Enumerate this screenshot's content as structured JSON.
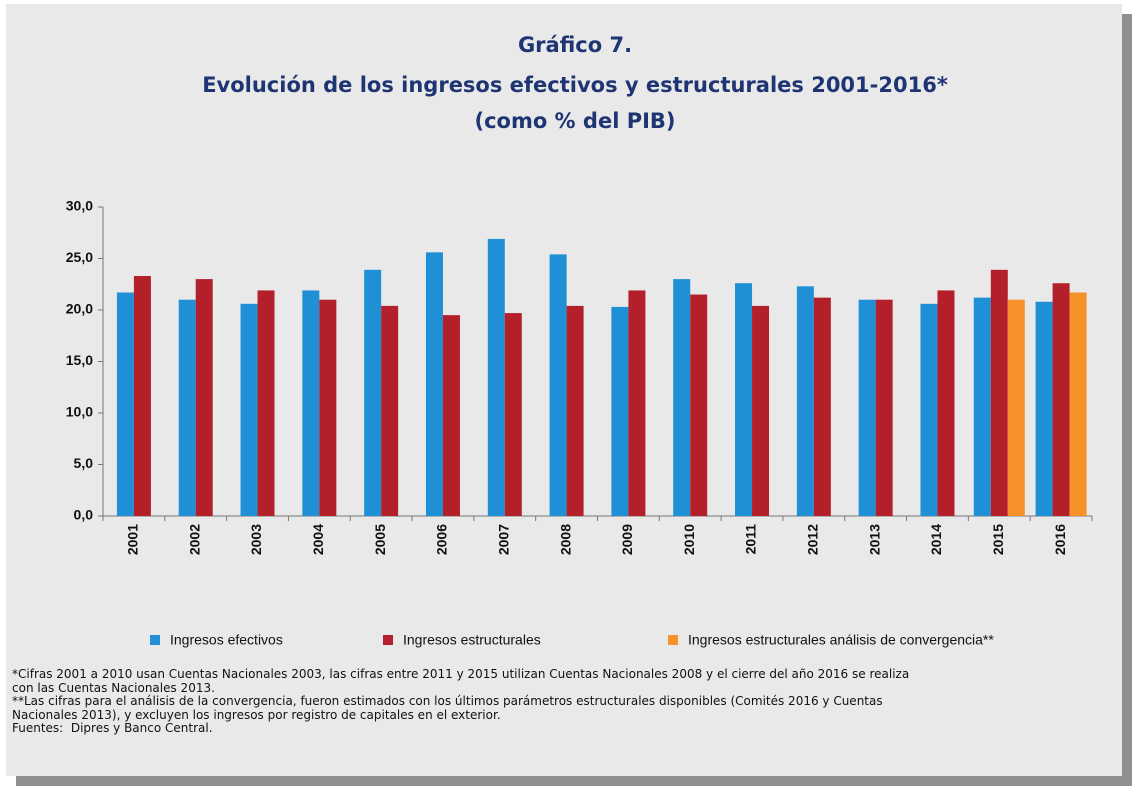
{
  "chart_data": {
    "type": "bar",
    "title": [
      "Gráfico 7.",
      "Evolución de los ingresos efectivos y estructurales 2001-2016*",
      "(como % del PIB)"
    ],
    "categories": [
      "2001",
      "2002",
      "2003",
      "2004",
      "2005",
      "2006",
      "2007",
      "2008",
      "2009",
      "2010",
      "2011",
      "2012",
      "2013",
      "2014",
      "2015",
      "2016"
    ],
    "series": [
      {
        "name": "Ingresos efectivos",
        "color": "#1f8fd6",
        "values": [
          21.7,
          21.0,
          20.6,
          21.9,
          23.9,
          25.6,
          26.9,
          25.4,
          20.3,
          23.0,
          22.6,
          22.3,
          21.0,
          20.6,
          21.2,
          20.8
        ]
      },
      {
        "name": "Ingresos estructurales",
        "color": "#b3202a",
        "values": [
          23.3,
          23.0,
          21.9,
          21.0,
          20.4,
          19.5,
          19.7,
          20.4,
          21.9,
          21.5,
          20.4,
          21.2,
          21.0,
          21.9,
          23.9,
          22.6
        ]
      },
      {
        "name": "Ingresos estructurales análisis de convergencia**",
        "color": "#f7922a",
        "values": [
          null,
          null,
          null,
          null,
          null,
          null,
          null,
          null,
          null,
          null,
          null,
          null,
          null,
          null,
          21.0,
          21.7
        ]
      }
    ],
    "ylim": [
      0,
      30
    ],
    "yticks": [
      {
        "value": 0,
        "label": "0,0"
      },
      {
        "value": 5,
        "label": "5,0"
      },
      {
        "value": 10,
        "label": "10,0"
      },
      {
        "value": 15,
        "label": "15,0"
      },
      {
        "value": 20,
        "label": "20,0"
      },
      {
        "value": 25,
        "label": "25,0"
      },
      {
        "value": 30,
        "label": "30,0"
      }
    ],
    "grid": false,
    "legend": "bottom",
    "notes": [
      "*Cifras 2001 a 2010 usan Cuentas Nacionales 2003, las cifras entre 2011 y 2015 utilizan Cuentas Nacionales 2008 y el cierre del año 2016 se realiza",
      "con las Cuentas Nacionales 2013.",
      "**Las cifras para el análisis de la convergencia, fueron estimados con los últimos parámetros estructurales disponibles (Comités 2016 y Cuentas",
      "Nacionales 2013), y excluyen los ingresos por registro de capitales en el exterior.",
      "Fuentes:  Dipres y Banco Central."
    ]
  }
}
